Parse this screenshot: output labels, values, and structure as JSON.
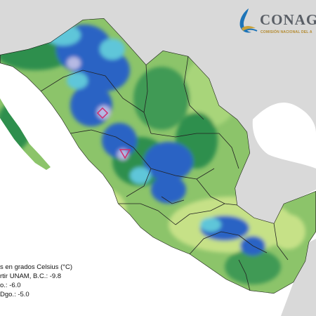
{
  "brand": {
    "name": "CONAG",
    "subtitle": "COMISIÓN NACIONAL DEL A",
    "colors": {
      "wave": "#1d74b8",
      "accent": "#c9a13a",
      "text": "#5a5f66"
    },
    "icon": "water-drop-logo-icon"
  },
  "legend": {
    "lines": [
      "s en grados Celsius (°C)",
      "rtir UNAM, B.C.: -9.8",
      "o.: -6.0",
      "Dgo.: -5.0"
    ]
  },
  "map": {
    "colors": {
      "ocean": "#ffffff",
      "foreign_land": "#d9d9d9",
      "base_land": "#8cc46a",
      "coastal": "#c6e187",
      "dark_green": "#2f8f4e",
      "cyan": "#5fc6d9",
      "blue": "#2a63c4",
      "lavender": "#b6b9e3",
      "border": "#222222",
      "markers": "#d03070"
    },
    "markers": [
      {
        "id": "marker-diamond",
        "shape": "diamond"
      },
      {
        "id": "marker-triangle",
        "shape": "triangle"
      }
    ]
  }
}
